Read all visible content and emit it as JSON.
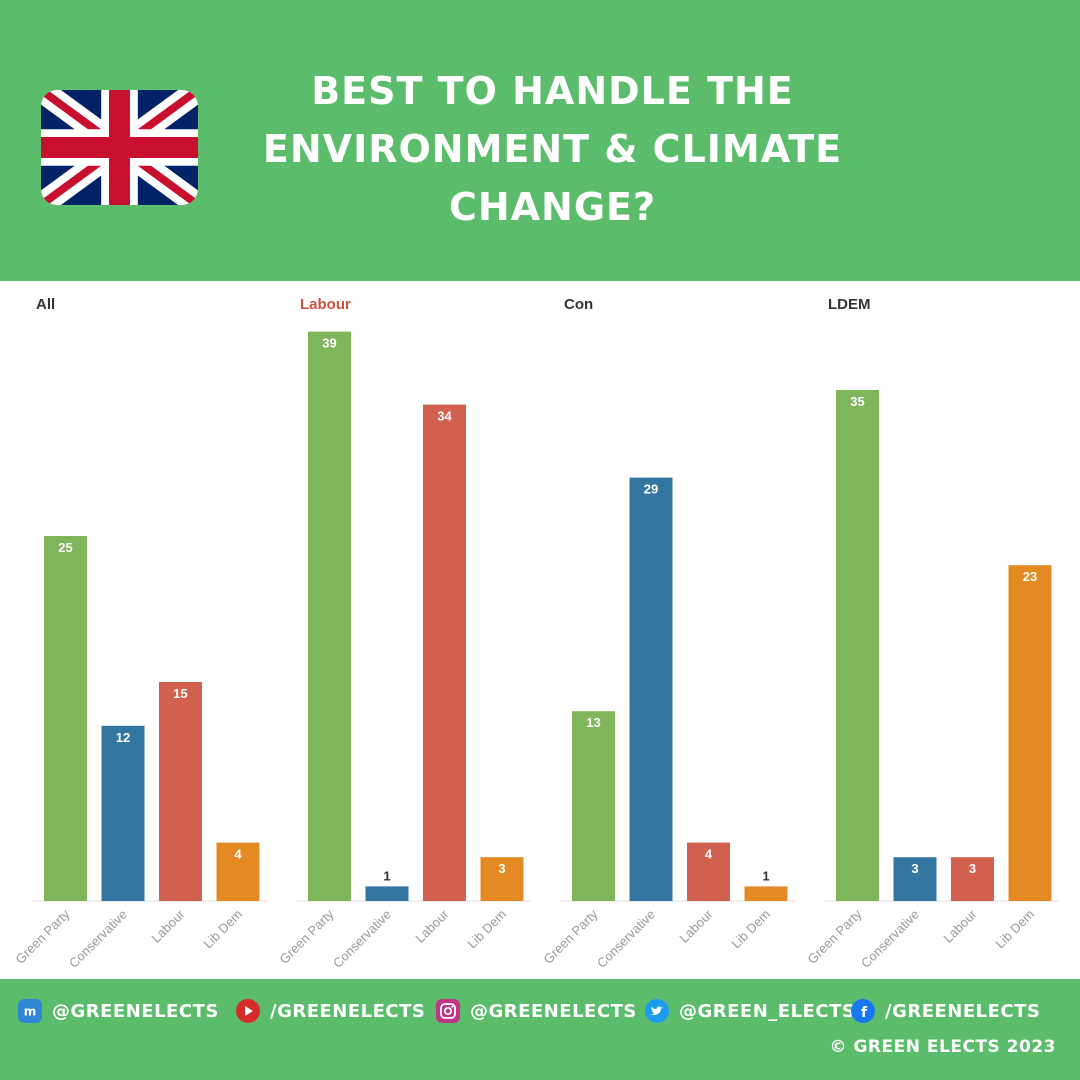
{
  "header": {
    "title_lines": [
      "BEST TO HANDLE THE",
      "ENVIRONMENT & CLIMATE",
      "CHANGE?"
    ],
    "flag_icon": "uk-flag-icon"
  },
  "colors": {
    "green_bg": "#5bbd6b",
    "Green Party": "#7fb55b",
    "Conservative": "#33769f",
    "Labour": "#d2604f",
    "Lib Dem": "#e38a22",
    "labour_panel_title": "#c9523f"
  },
  "chart_data": [
    {
      "type": "bar",
      "title": "All",
      "categories": [
        "Green Party",
        "Conservative",
        "Labour",
        "Lib Dem"
      ],
      "values": [
        25,
        12,
        15,
        4
      ],
      "ylim": [
        0,
        40
      ],
      "grid": false
    },
    {
      "type": "bar",
      "title": "Labour",
      "categories": [
        "Green Party",
        "Conservative",
        "Labour",
        "Lib Dem"
      ],
      "values": [
        39,
        1,
        34,
        3
      ],
      "ylim": [
        0,
        40
      ],
      "grid": false
    },
    {
      "type": "bar",
      "title": "Con",
      "categories": [
        "Green Party",
        "Conservative",
        "Labour",
        "Lib Dem"
      ],
      "values": [
        13,
        29,
        4,
        1
      ],
      "ylim": [
        0,
        40
      ],
      "grid": false
    },
    {
      "type": "bar",
      "title": "LDEM",
      "categories": [
        "Green Party",
        "Conservative",
        "Labour",
        "Lib Dem"
      ],
      "values": [
        35,
        3,
        3,
        23
      ],
      "ylim": [
        0,
        40
      ],
      "grid": false
    }
  ],
  "footer": {
    "socials": [
      {
        "icon": "mastodon-icon",
        "handle": "@GREENELECTS"
      },
      {
        "icon": "youtube-icon",
        "handle": "/GREENELECTS"
      },
      {
        "icon": "instagram-icon",
        "handle": "@GREENELECTS"
      },
      {
        "icon": "twitter-icon",
        "handle": "@GREEN_ELECTS"
      },
      {
        "icon": "facebook-icon",
        "handle": "/GREENELECTS"
      }
    ],
    "copyright": "© GREEN ELECTS 2023"
  }
}
